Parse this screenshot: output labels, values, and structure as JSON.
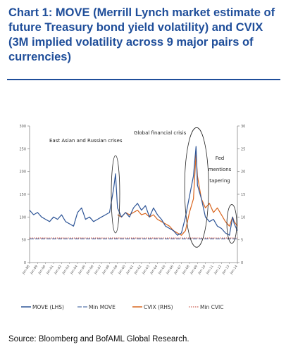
{
  "title": "Chart 1: MOVE (Merrill Lynch market estimate of future Treasury bond yield volatility) and CVIX (3M implied volatility across 9 major pairs of currencies)",
  "source": "Source: Bloomberg and BofAML Global Research.",
  "colors": {
    "title": "#1f4e9a",
    "move": "#2e5597",
    "cvix": "#d9651e",
    "min_move": "#2e5597",
    "min_cvix": "#c0392b"
  },
  "chart_data": {
    "type": "line",
    "x_range": [
      "Jan-1988",
      "Jan-2014"
    ],
    "x_tick_labels": [
      "Jan-88",
      "Jan-89",
      "Jan-90",
      "Jan-91",
      "Jan-92",
      "Jan-93",
      "Jan-94",
      "Jan-95",
      "Jan-96",
      "Jan-97",
      "Jan-98",
      "Jan-99",
      "Jan-00",
      "Jan-01",
      "Jan-02",
      "Jan-03",
      "Jan-04",
      "Jan-05",
      "Jan-06",
      "Jan-07",
      "Jan-08",
      "Jan-09",
      "Jan-10",
      "Jan-11",
      "Jan-12",
      "Jan-13",
      "Jan-14"
    ],
    "y_left": {
      "min": 0,
      "max": 300,
      "ticks": [
        "0",
        "50",
        "100",
        "150",
        "200",
        "250",
        "300"
      ]
    },
    "y_right": {
      "min": 0,
      "max": 30,
      "ticks": [
        "0",
        "5",
        "10",
        "15",
        "20",
        "25",
        "30"
      ]
    },
    "grid": false,
    "legend_position": "bottom",
    "annotations": [
      "East Asian and Russian crises",
      "Global financial crisis",
      "Fed mentions tapering"
    ],
    "series": [
      {
        "name": "MOVE (LHS)",
        "axis": "left",
        "x": [
          1988,
          1988.5,
          1989,
          1989.5,
          1990,
          1990.5,
          1991,
          1991.5,
          1992,
          1992.5,
          1993,
          1993.5,
          1994,
          1994.5,
          1995,
          1995.5,
          1996,
          1996.5,
          1997,
          1997.5,
          1998,
          1998.5,
          1998.75,
          1999,
          1999.5,
          2000,
          2000.5,
          2001,
          2001.5,
          2002,
          2002.5,
          2003,
          2003.5,
          2004,
          2004.5,
          2005,
          2005.5,
          2006,
          2006.5,
          2007,
          2007.5,
          2008,
          2008.5,
          2008.83,
          2009,
          2009.5,
          2010,
          2010.5,
          2011,
          2011.5,
          2012,
          2012.5,
          2013,
          2013.4,
          2013.6,
          2014
        ],
        "values": [
          115,
          105,
          110,
          100,
          95,
          90,
          100,
          95,
          105,
          90,
          85,
          80,
          110,
          120,
          95,
          100,
          90,
          95,
          100,
          105,
          110,
          160,
          195,
          120,
          100,
          110,
          100,
          120,
          130,
          115,
          125,
          100,
          120,
          105,
          95,
          80,
          75,
          70,
          60,
          65,
          100,
          145,
          190,
          255,
          170,
          140,
          100,
          90,
          95,
          80,
          75,
          65,
          60,
          100,
          85,
          70
        ]
      },
      {
        "name": "Min MOVE",
        "axis": "left",
        "values": [
          52
        ]
      },
      {
        "name": "CVIX (RHS)",
        "axis": "right",
        "x": [
          1999,
          1999.5,
          2000,
          2000.5,
          2001,
          2001.5,
          2002,
          2002.5,
          2003,
          2003.5,
          2004,
          2004.5,
          2005,
          2005.5,
          2006,
          2006.5,
          2007,
          2007.5,
          2008,
          2008.5,
          2008.83,
          2009,
          2009.5,
          2010,
          2010.5,
          2011,
          2011.5,
          2012,
          2012.5,
          2013,
          2013.4,
          2013.6,
          2014
        ],
        "values": [
          10.5,
          10,
          11,
          10.5,
          11,
          11.5,
          10.5,
          10.8,
          10,
          10.5,
          9.5,
          9,
          8.5,
          8,
          7,
          6.5,
          6,
          7,
          11,
          14,
          24,
          19,
          14,
          12,
          13,
          11,
          12,
          10.5,
          9,
          8,
          10,
          9,
          8
        ]
      },
      {
        "name": "Min CVIC",
        "axis": "right",
        "values": [
          5.4
        ]
      }
    ]
  }
}
